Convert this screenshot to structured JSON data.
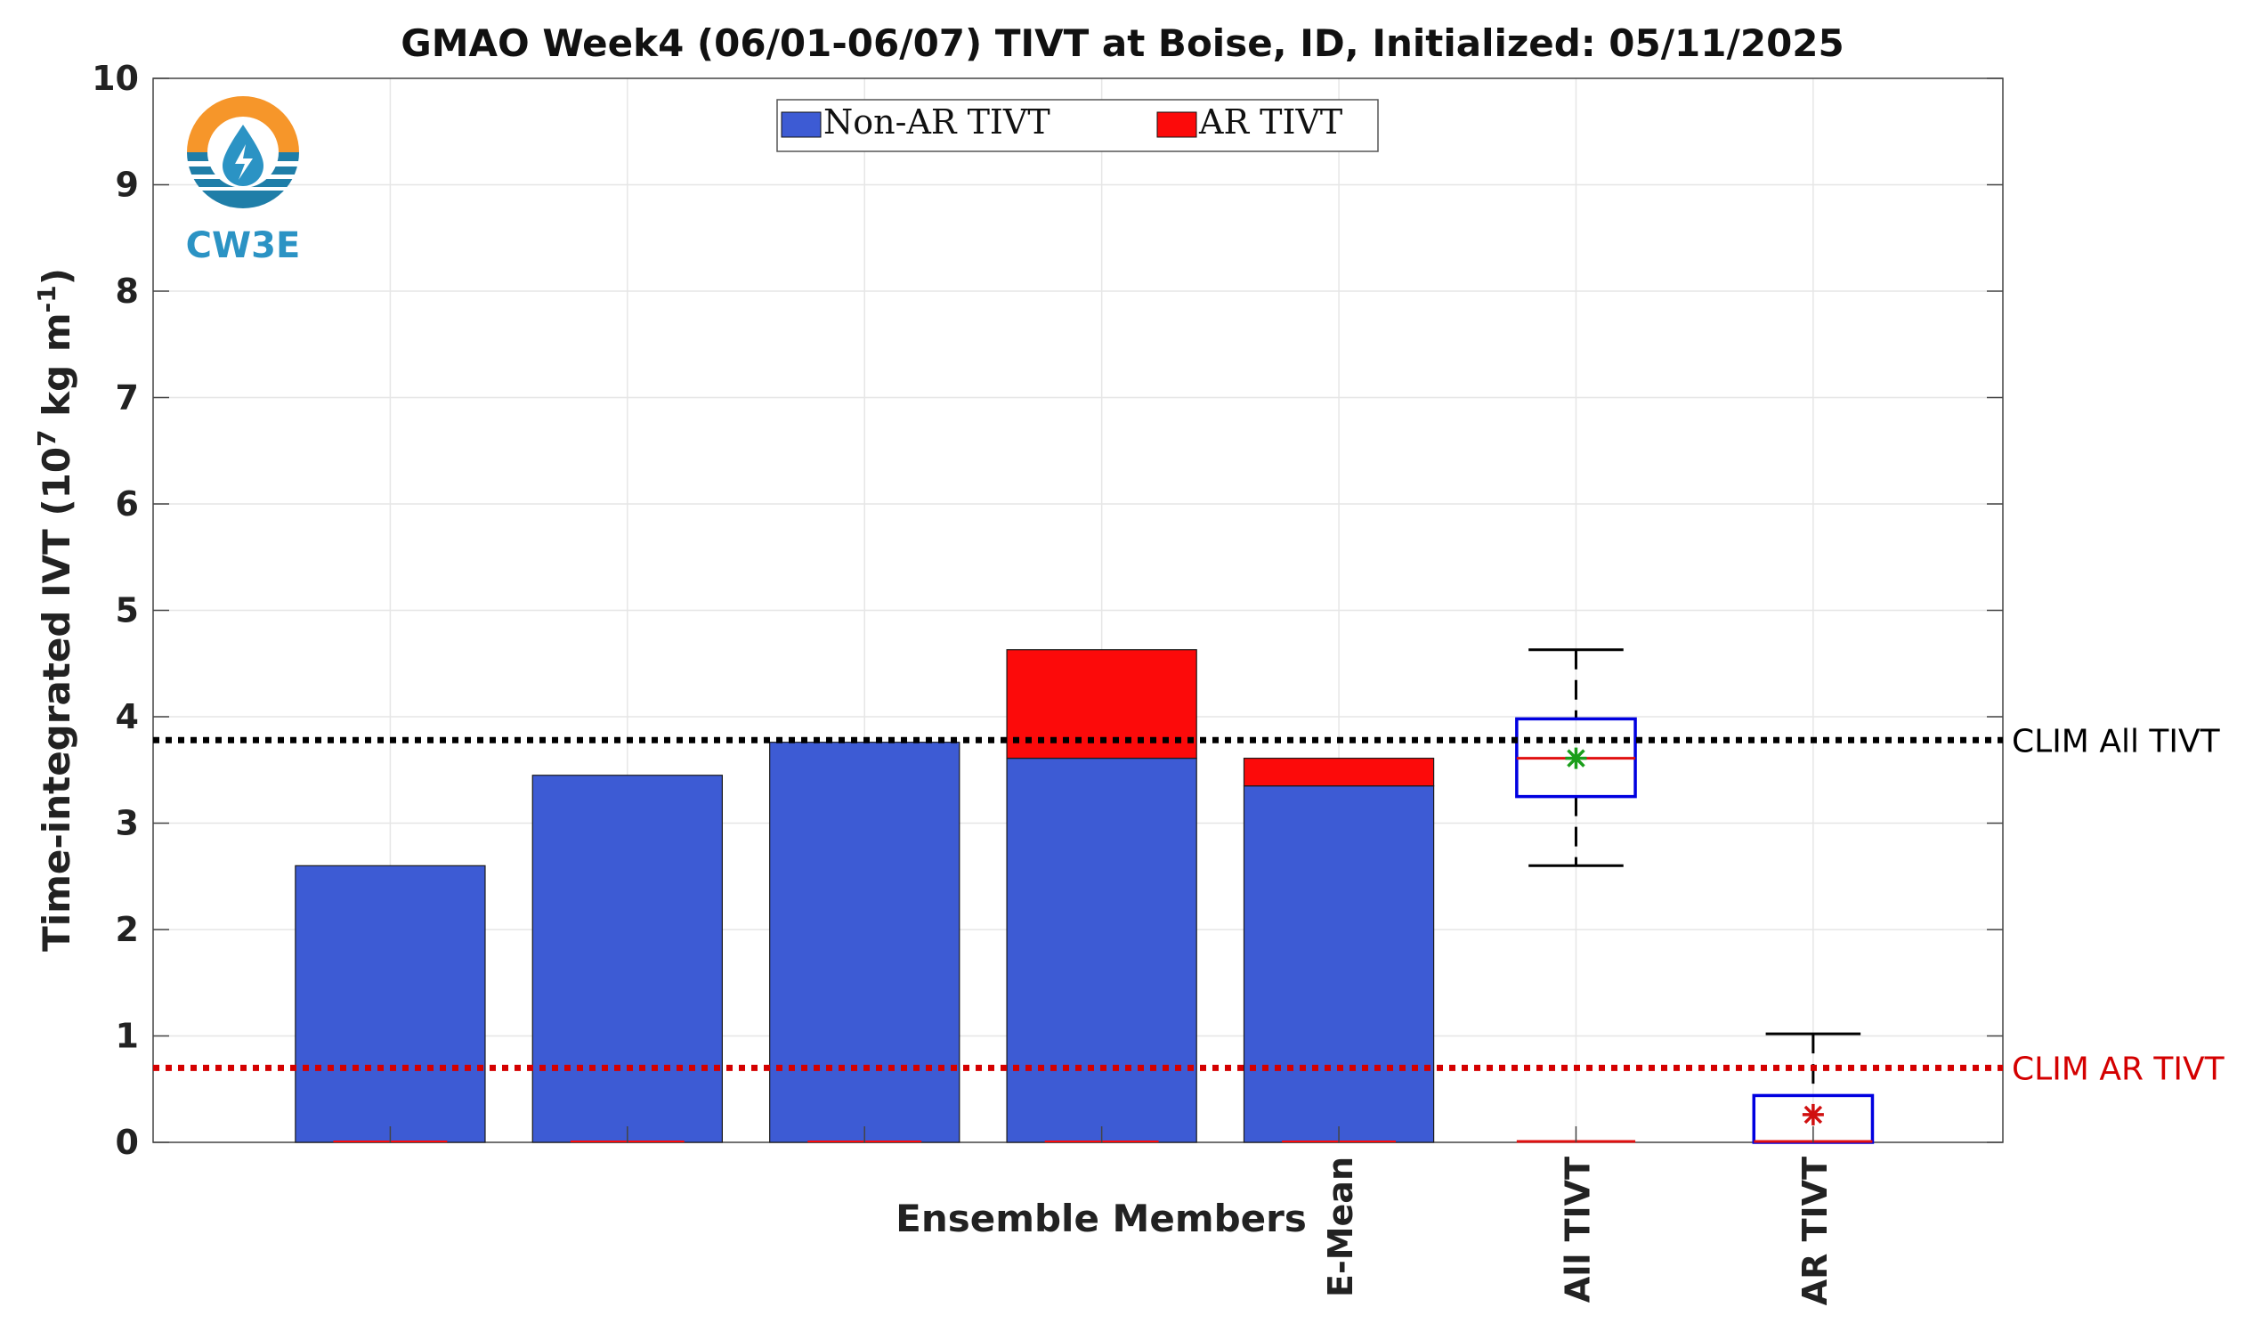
{
  "chart_data": {
    "type": "bar",
    "title": "GMAO Week4 (06/01-06/07) TIVT at Boise, ID, Initialized: 05/11/2025",
    "xlabel": "Ensemble Members",
    "ylabel": "Time-integrated IVT (10",
    "ylabel_sup": "7",
    "ylabel_mid": " kg m",
    "ylabel_sup2": "-1",
    "ylabel_end": ")",
    "ylim": [
      0,
      10
    ],
    "yticks": [
      "0",
      "1",
      "2",
      "3",
      "4",
      "5",
      "6",
      "7",
      "8",
      "9",
      "10"
    ],
    "grid": true,
    "legend_placement": "top-center",
    "categories": [
      "",
      "",
      "",
      "",
      "E-Mean"
    ],
    "series": [
      {
        "name": "Non-AR TIVT",
        "color": "#3d5bd4",
        "values": [
          2.6,
          3.45,
          3.76,
          3.61,
          3.35
        ]
      },
      {
        "name": "AR TIVT",
        "color": "#fc0a0a",
        "values": [
          0,
          0,
          0,
          1.02,
          0.26
        ]
      }
    ],
    "boxplots": [
      {
        "label": "All TIVT",
        "min": 2.6,
        "q1": 3.25,
        "median": 3.61,
        "q3": 3.98,
        "max": 4.63,
        "mean": 3.61,
        "box_color": "#0000e0",
        "mean_color": "#1a9e1a"
      },
      {
        "label": "AR TIVT",
        "min": 0,
        "q1": 0,
        "median": 0,
        "q3": 0.44,
        "max": 1.02,
        "mean": 0.26,
        "box_color": "#0000e0",
        "mean_color": "#d01010"
      }
    ],
    "reference_lines": [
      {
        "label": "CLIM All TIVT",
        "value": 3.78,
        "color": "#000000"
      },
      {
        "label": "CLIM AR TIVT",
        "value": 0.7,
        "color": "#d40000"
      }
    ]
  },
  "logo": {
    "text": "CW3E"
  }
}
